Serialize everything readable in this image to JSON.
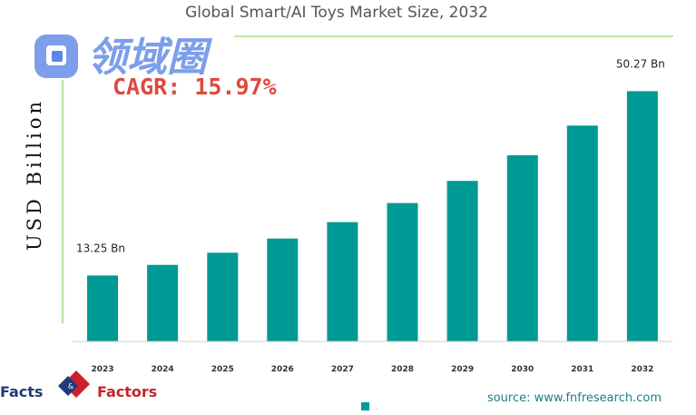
{
  "colors": {
    "bar": "#009a94",
    "frame": "#bfe6a3",
    "cagr": "#e0483f",
    "source": "#1f7f86"
  },
  "watermark": {
    "text": "领域圈"
  },
  "cagr_label": "CAGR: 15.97%",
  "source": "source: www.fnfresearch.com",
  "logo": {
    "left": "Facts",
    "right": "Factors",
    "badge_icon": "facts-factors-diamond-icon"
  },
  "legend": {
    "label": "."
  },
  "chart_data": {
    "type": "bar",
    "title": "Global Smart/AI Toys Market Size, 2032",
    "ylabel": "USD Billion",
    "xlabel": "",
    "categories": [
      "2023",
      "2024",
      "2025",
      "2026",
      "2027",
      "2028",
      "2029",
      "2030",
      "2031",
      "2032"
    ],
    "values": [
      13.25,
      15.37,
      17.82,
      20.67,
      23.97,
      27.8,
      32.24,
      37.39,
      43.36,
      50.27
    ],
    "data_labels": [
      {
        "index": 0,
        "text": "13.25 Bn"
      },
      {
        "index": 9,
        "text": "50.27 Bn"
      }
    ],
    "ylim": [
      0,
      58
    ],
    "grid": false
  }
}
